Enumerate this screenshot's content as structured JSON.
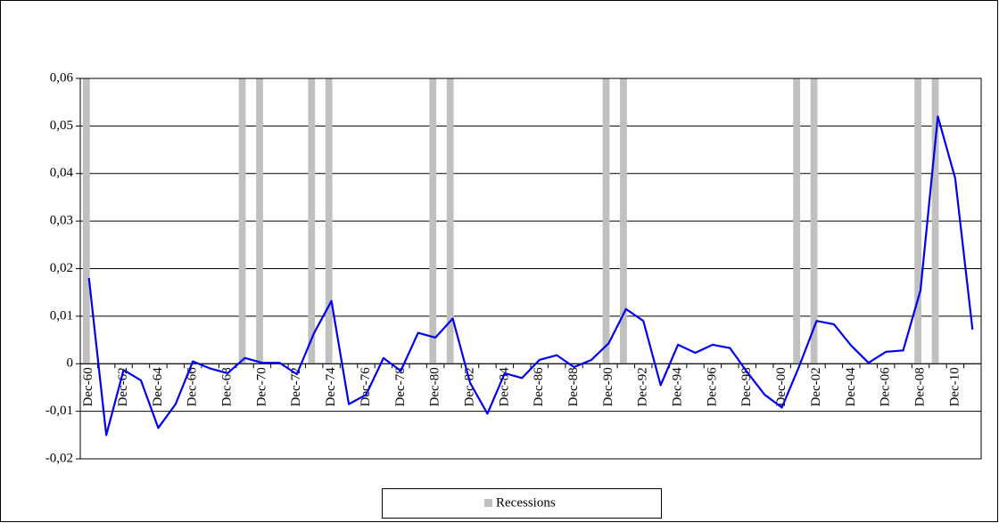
{
  "chart_data": {
    "type": "line",
    "categories": [
      "Dec-60",
      null,
      "Dec-62",
      null,
      "Dec-64",
      null,
      "Dec-66",
      null,
      "Dec-68",
      null,
      "Dec-70",
      null,
      "Dec-72",
      null,
      "Dec-74",
      null,
      "Dec-76",
      null,
      "Dec-78",
      null,
      "Dec-80",
      null,
      "Dec-82",
      null,
      "Dec-84",
      null,
      "Dec-86",
      null,
      "Dec-88",
      null,
      "Dec-90",
      null,
      "Dec-92",
      null,
      "Dec-94",
      null,
      "Dec-96",
      null,
      "Dec-98",
      null,
      "Dec-00",
      null,
      "Dec-02",
      null,
      "Dec-04",
      null,
      "Dec-06",
      null,
      "Dec-08",
      null,
      "Dec-10",
      null
    ],
    "series": [
      {
        "name": "Recessions",
        "type": "bar",
        "color": "#c0c0c0",
        "values": [
          0.06,
          0,
          0,
          0,
          0,
          0,
          0,
          0,
          0,
          0.06,
          0.06,
          0,
          0,
          0.06,
          0.06,
          0,
          0,
          0,
          0,
          0,
          0.06,
          0.06,
          0,
          0,
          0,
          0,
          0,
          0,
          0,
          0,
          0.06,
          0.06,
          0,
          0,
          0,
          0,
          0,
          0,
          0,
          0,
          0,
          0.06,
          0.06,
          0,
          0,
          0,
          0,
          0,
          0.06,
          0.06,
          0,
          0
        ]
      },
      {
        "type": "line",
        "color": "#0000ee",
        "values": [
          0.018,
          -0.015,
          -0.0013,
          -0.0035,
          -0.0135,
          -0.0085,
          0.0005,
          -0.001,
          -0.002,
          0.0012,
          0.0002,
          0.0002,
          -0.0022,
          0.0065,
          0.0132,
          -0.0085,
          -0.0065,
          0.0012,
          -0.0015,
          0.0065,
          0.0055,
          0.0095,
          -0.004,
          -0.0105,
          -0.002,
          -0.003,
          0.0008,
          0.0018,
          -0.0007,
          0.0008,
          0.0043,
          0.0115,
          0.009,
          -0.0045,
          0.004,
          0.0023,
          0.004,
          0.0033,
          -0.0018,
          -0.0065,
          -0.0092,
          -0.0005,
          0.009,
          0.0083,
          0.0038,
          0.0002,
          0.0025,
          0.0028,
          0.0155,
          0.052,
          0.039,
          0.0072
        ]
      }
    ],
    "ylim": [
      -0.02,
      0.06
    ],
    "yticks": [
      {
        "value": -0.02,
        "label": "-0,02"
      },
      {
        "value": -0.01,
        "label": "-0,01"
      },
      0,
      {
        "value": 0.01,
        "label": "0,01"
      },
      {
        "value": 0.02,
        "label": "0,02"
      },
      {
        "value": 0.03,
        "label": "0,03"
      },
      {
        "value": 0.04,
        "label": "0,04"
      },
      {
        "value": 0.05,
        "label": "0,05"
      },
      {
        "value": 0.06,
        "label": "0,06"
      }
    ],
    "grid": true
  }
}
